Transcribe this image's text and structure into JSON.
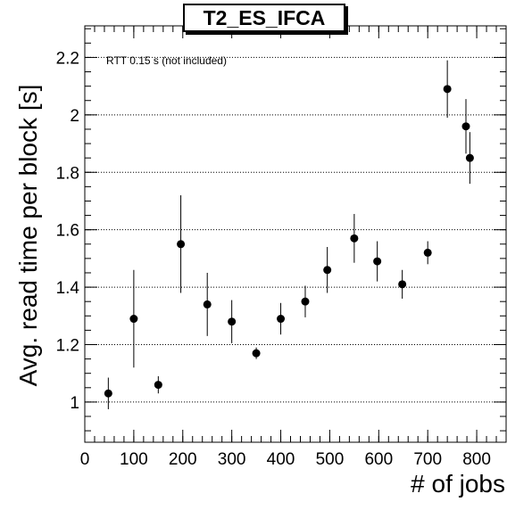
{
  "chart_data": {
    "type": "scatter",
    "title": "T2_ES_IFCA",
    "xlabel": "# of jobs",
    "ylabel": "Avg. read time per block [s]",
    "annotation": "RTT 0.15 s (not included)",
    "xlim": [
      0,
      860
    ],
    "ylim": [
      0.86,
      2.31
    ],
    "xticks": [
      0,
      100,
      200,
      300,
      400,
      500,
      600,
      700,
      800
    ],
    "yticks": [
      1,
      1.2,
      1.4,
      1.6,
      1.8,
      2,
      2.2
    ],
    "grid": "horizontal-dotted",
    "points": [
      {
        "x": 48,
        "y": 1.03,
        "err": 0.055
      },
      {
        "x": 100,
        "y": 1.29,
        "err": 0.17
      },
      {
        "x": 150,
        "y": 1.06,
        "err": 0.03
      },
      {
        "x": 196,
        "y": 1.55,
        "err": 0.17
      },
      {
        "x": 250,
        "y": 1.34,
        "err": 0.11
      },
      {
        "x": 300,
        "y": 1.28,
        "err": 0.075
      },
      {
        "x": 350,
        "y": 1.17,
        "err": 0.02
      },
      {
        "x": 400,
        "y": 1.29,
        "err": 0.055
      },
      {
        "x": 450,
        "y": 1.35,
        "err": 0.055
      },
      {
        "x": 495,
        "y": 1.46,
        "err": 0.08
      },
      {
        "x": 550,
        "y": 1.57,
        "err": 0.085
      },
      {
        "x": 597,
        "y": 1.49,
        "err": 0.07
      },
      {
        "x": 648,
        "y": 1.41,
        "err": 0.05
      },
      {
        "x": 700,
        "y": 1.52,
        "err": 0.04
      },
      {
        "x": 740,
        "y": 2.09,
        "err": 0.1
      },
      {
        "x": 778,
        "y": 1.96,
        "err": 0.095
      },
      {
        "x": 786,
        "y": 1.85,
        "err": 0.09
      }
    ]
  }
}
